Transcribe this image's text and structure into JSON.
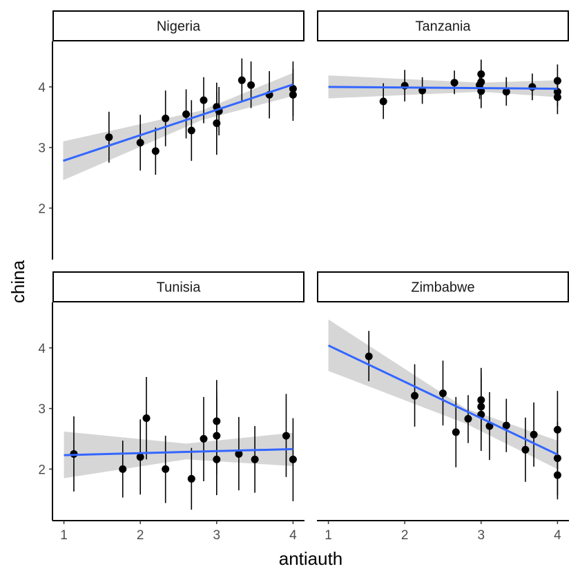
{
  "chart_data": {
    "type": "scatter",
    "xlabel": "antiauth",
    "ylabel": "china",
    "xlim": [
      0.85,
      4.15
    ],
    "ylim": [
      1.15,
      4.75
    ],
    "x_ticks": [
      1,
      2,
      3,
      4
    ],
    "y_ticks": [
      2,
      3,
      4
    ],
    "grid": false,
    "fit_color": "#3366FF",
    "ribbon_color": "#999999",
    "point_color": "#000000",
    "panels": [
      {
        "name": "Nigeria",
        "fit": [
          [
            0.99,
            2.78
          ],
          [
            4.0,
            4.04
          ]
        ],
        "ribbon": {
          "x": [
            0.99,
            2.8,
            4.0
          ],
          "lo": [
            2.46,
            3.45,
            3.85
          ],
          "hi": [
            3.1,
            3.61,
            4.23
          ]
        },
        "points": [
          {
            "x": 1.59,
            "y": 3.17,
            "lo": 2.75,
            "hi": 3.59
          },
          {
            "x": 2.0,
            "y": 3.08,
            "lo": 2.62,
            "hi": 3.54
          },
          {
            "x": 2.2,
            "y": 2.94,
            "lo": 2.55,
            "hi": 3.33
          },
          {
            "x": 2.33,
            "y": 3.48,
            "lo": 3.02,
            "hi": 3.94
          },
          {
            "x": 2.6,
            "y": 3.55,
            "lo": 3.15,
            "hi": 3.96
          },
          {
            "x": 2.67,
            "y": 3.28,
            "lo": 2.78,
            "hi": 3.78
          },
          {
            "x": 2.83,
            "y": 3.78,
            "lo": 3.4,
            "hi": 4.16
          },
          {
            "x": 3.0,
            "y": 3.67,
            "lo": 3.27,
            "hi": 4.07
          },
          {
            "x": 3.0,
            "y": 3.4,
            "lo": 2.88,
            "hi": 3.92
          },
          {
            "x": 3.03,
            "y": 3.6,
            "lo": 3.2,
            "hi": 4.0
          },
          {
            "x": 3.33,
            "y": 4.11,
            "lo": 3.75,
            "hi": 4.47
          },
          {
            "x": 3.45,
            "y": 4.03,
            "lo": 3.65,
            "hi": 4.42
          },
          {
            "x": 3.69,
            "y": 3.87,
            "lo": 3.48,
            "hi": 4.26
          },
          {
            "x": 4.0,
            "y": 3.97,
            "lo": 3.52,
            "hi": 4.42
          },
          {
            "x": 4.0,
            "y": 3.87,
            "lo": 3.44,
            "hi": 4.3
          }
        ]
      },
      {
        "name": "Tanzania",
        "fit": [
          [
            1.0,
            4.0
          ],
          [
            4.0,
            3.97
          ]
        ],
        "ribbon": {
          "x": [
            1.0,
            3.0,
            4.0
          ],
          "lo": [
            3.81,
            3.92,
            3.83
          ],
          "hi": [
            4.19,
            4.07,
            4.11
          ]
        },
        "points": [
          {
            "x": 1.72,
            "y": 3.76,
            "lo": 3.47,
            "hi": 4.06
          },
          {
            "x": 2.0,
            "y": 4.02,
            "lo": 3.76,
            "hi": 4.28
          },
          {
            "x": 2.23,
            "y": 3.94,
            "lo": 3.72,
            "hi": 4.16
          },
          {
            "x": 2.65,
            "y": 4.07,
            "lo": 3.88,
            "hi": 4.27
          },
          {
            "x": 2.98,
            "y": 4.03,
            "lo": 3.8,
            "hi": 4.26
          },
          {
            "x": 3.0,
            "y": 4.21,
            "lo": 3.97,
            "hi": 4.45
          },
          {
            "x": 3.0,
            "y": 4.08,
            "lo": 3.86,
            "hi": 4.3
          },
          {
            "x": 3.0,
            "y": 3.93,
            "lo": 3.65,
            "hi": 4.21
          },
          {
            "x": 3.33,
            "y": 3.92,
            "lo": 3.69,
            "hi": 4.16
          },
          {
            "x": 3.67,
            "y": 4.0,
            "lo": 3.78,
            "hi": 4.22
          },
          {
            "x": 4.0,
            "y": 4.1,
            "lo": 3.85,
            "hi": 4.37
          },
          {
            "x": 4.0,
            "y": 3.92,
            "lo": 3.68,
            "hi": 4.16
          },
          {
            "x": 4.0,
            "y": 3.83,
            "lo": 3.55,
            "hi": 4.11
          }
        ]
      },
      {
        "name": "Tunisia",
        "fit": [
          [
            1.0,
            2.23
          ],
          [
            4.0,
            2.33
          ]
        ],
        "ribbon": {
          "x": [
            1.0,
            2.6,
            4.0
          ],
          "lo": [
            1.85,
            2.16,
            2.05
          ],
          "hi": [
            2.62,
            2.42,
            2.6
          ]
        },
        "points": [
          {
            "x": 1.13,
            "y": 2.25,
            "lo": 1.63,
            "hi": 2.87
          },
          {
            "x": 1.77,
            "y": 2.0,
            "lo": 1.53,
            "hi": 2.47
          },
          {
            "x": 2.0,
            "y": 2.2,
            "lo": 1.58,
            "hi": 2.82
          },
          {
            "x": 2.08,
            "y": 2.84,
            "lo": 2.16,
            "hi": 3.52
          },
          {
            "x": 2.33,
            "y": 2.0,
            "lo": 1.44,
            "hi": 2.55
          },
          {
            "x": 2.67,
            "y": 1.84,
            "lo": 1.33,
            "hi": 2.35
          },
          {
            "x": 2.83,
            "y": 2.5,
            "lo": 1.8,
            "hi": 3.19
          },
          {
            "x": 3.0,
            "y": 2.79,
            "lo": 2.29,
            "hi": 3.29
          },
          {
            "x": 3.0,
            "y": 2.55,
            "lo": 1.91,
            "hi": 3.19
          },
          {
            "x": 3.0,
            "y": 2.16,
            "lo": 1.57,
            "hi": 3.47
          },
          {
            "x": 3.29,
            "y": 2.25,
            "lo": 1.65,
            "hi": 2.86
          },
          {
            "x": 3.5,
            "y": 2.16,
            "lo": 1.61,
            "hi": 2.71
          },
          {
            "x": 3.91,
            "y": 2.55,
            "lo": 1.87,
            "hi": 3.24
          },
          {
            "x": 4.0,
            "y": 2.16,
            "lo": 1.47,
            "hi": 2.84
          }
        ]
      },
      {
        "name": "Zimbabwe",
        "fit": [
          [
            1.0,
            4.04
          ],
          [
            4.0,
            2.24
          ]
        ],
        "ribbon": {
          "x": [
            1.0,
            2.8,
            4.0
          ],
          "lo": [
            3.62,
            2.75,
            2.0
          ],
          "hi": [
            4.47,
            3.0,
            2.47
          ]
        },
        "points": [
          {
            "x": 1.53,
            "y": 3.86,
            "lo": 3.45,
            "hi": 4.28
          },
          {
            "x": 2.13,
            "y": 3.21,
            "lo": 2.7,
            "hi": 3.73
          },
          {
            "x": 2.5,
            "y": 3.25,
            "lo": 2.72,
            "hi": 3.79
          },
          {
            "x": 2.67,
            "y": 2.61,
            "lo": 2.03,
            "hi": 3.19
          },
          {
            "x": 2.83,
            "y": 2.83,
            "lo": 2.43,
            "hi": 3.22
          },
          {
            "x": 3.0,
            "y": 3.14,
            "lo": 2.62,
            "hi": 3.67
          },
          {
            "x": 3.0,
            "y": 3.03,
            "lo": 2.48,
            "hi": 3.58
          },
          {
            "x": 3.0,
            "y": 2.9,
            "lo": 2.3,
            "hi": 3.5
          },
          {
            "x": 3.11,
            "y": 2.71,
            "lo": 2.15,
            "hi": 3.27
          },
          {
            "x": 3.33,
            "y": 2.72,
            "lo": 2.28,
            "hi": 3.16
          },
          {
            "x": 3.58,
            "y": 2.32,
            "lo": 1.79,
            "hi": 2.85
          },
          {
            "x": 3.69,
            "y": 2.57,
            "lo": 2.04,
            "hi": 3.1
          },
          {
            "x": 4.0,
            "y": 2.65,
            "lo": 2.01,
            "hi": 3.29
          },
          {
            "x": 4.0,
            "y": 2.18,
            "lo": 1.57,
            "hi": 2.78
          },
          {
            "x": 4.0,
            "y": 1.9,
            "lo": 1.5,
            "hi": 2.3
          }
        ]
      }
    ]
  }
}
